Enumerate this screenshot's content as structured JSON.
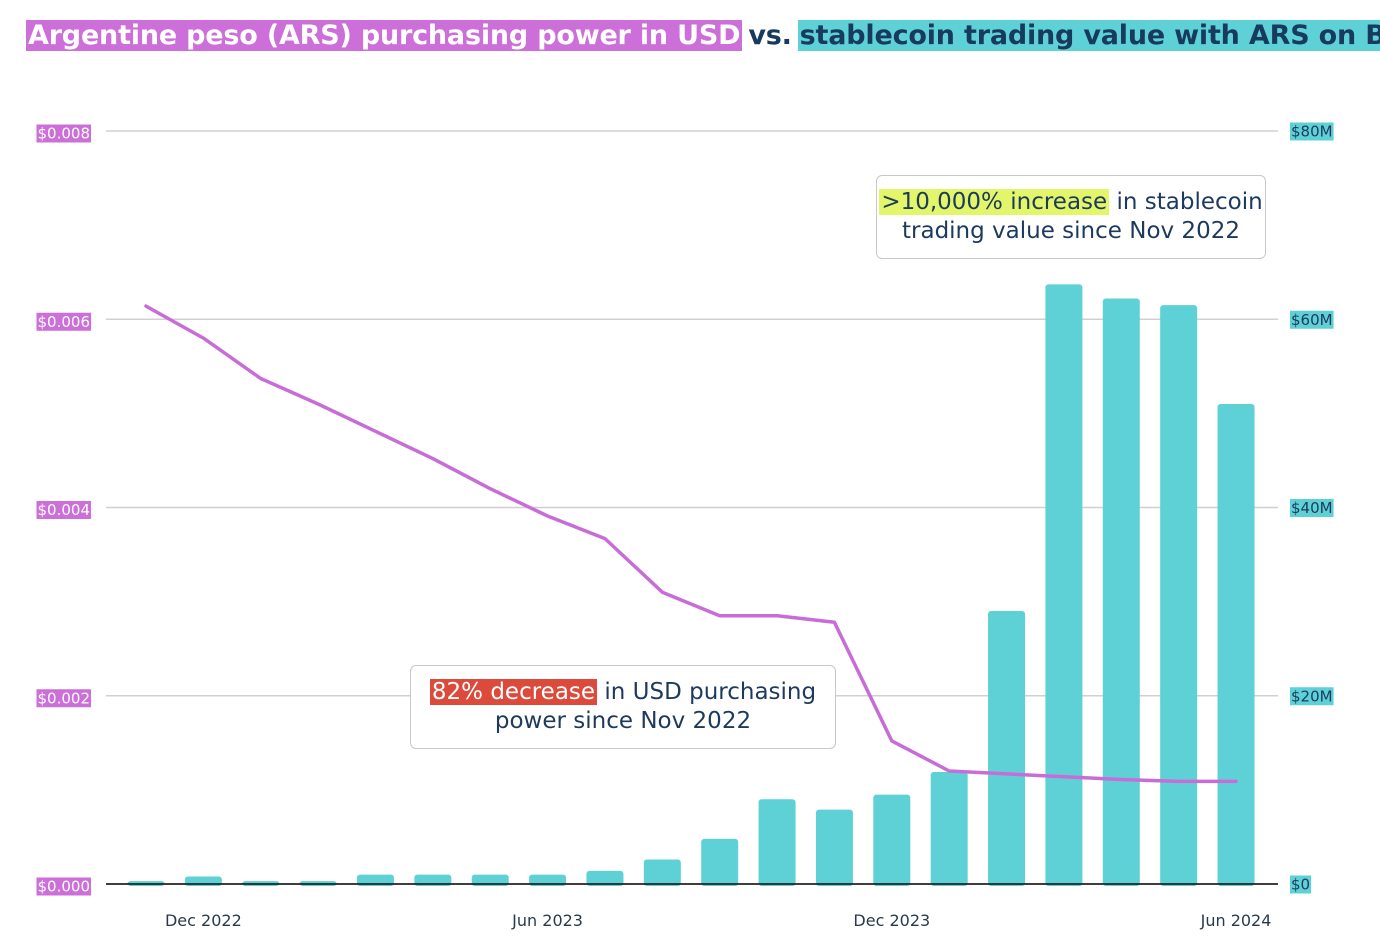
{
  "title": {
    "part1": "Argentine peso (ARS) purchasing power in USD",
    "vs": "vs.",
    "part2": "stablecoin trading value with ARS on Bitso"
  },
  "colors": {
    "line": "#c86dd7",
    "bars": "#5ed1d7",
    "left_axis_label_bg": "#cc6fd8",
    "right_axis_label_bg": "#5ed1d7",
    "grid": "#d0d0d0",
    "highlight_increase": "#e3f66a",
    "highlight_decrease": "#dc4a3c"
  },
  "annotations": {
    "increase": {
      "highlight": ">10,000% increase",
      "rest": " in stablecoin trading value since Nov 2022"
    },
    "decrease": {
      "highlight": "82% decrease",
      "rest": " in USD purchasing power since Nov 2022"
    }
  },
  "chart_data": {
    "type": "bar",
    "title": "Argentine peso (ARS) purchasing power in USD vs. stablecoin trading value with ARS on Bitso",
    "x_tick_labels": [
      "Dec 2022",
      "Jun 2023",
      "Dec 2023",
      "Jun 2024"
    ],
    "categories": [
      "Nov 2022",
      "Dec 2022",
      "Jan 2023",
      "Feb 2023",
      "Mar 2023",
      "Apr 2023",
      "May 2023",
      "Jun 2023",
      "Jul 2023",
      "Aug 2023",
      "Sep 2023",
      "Oct 2023",
      "Nov 2023",
      "Dec 2023",
      "Jan 2024",
      "Feb 2024",
      "Mar 2024",
      "Apr 2024",
      "May 2024",
      "Jun 2024"
    ],
    "left_axis": {
      "ticks": [
        "$0.000",
        "$0.002",
        "$0.004",
        "$0.006",
        "$0.008"
      ],
      "ylim": [
        0,
        0.008
      ]
    },
    "right_axis": {
      "ticks": [
        "$0",
        "$20M",
        "$40M",
        "$60M",
        "$80M"
      ],
      "ylim": [
        0,
        80
      ]
    },
    "series": [
      {
        "name": "stablecoin trading value with ARS on Bitso",
        "kind": "bar",
        "axis": "right",
        "unit": "$M",
        "values": [
          0.3,
          0.8,
          0.3,
          0.3,
          1.0,
          1.0,
          1.0,
          1.0,
          1.4,
          2.6,
          4.8,
          9.0,
          7.9,
          9.5,
          11.9,
          29.0,
          63.7,
          62.2,
          61.5,
          51.0
        ]
      },
      {
        "name": "Argentine peso (ARS) purchasing power in USD",
        "kind": "line",
        "axis": "left",
        "values": [
          0.00614,
          0.0058,
          0.00537,
          0.0051,
          0.00481,
          0.00452,
          0.0042,
          0.00391,
          0.00367,
          0.0031,
          0.00285,
          0.00285,
          0.00278,
          0.00152,
          0.0012,
          0.00117,
          0.00114,
          0.00111,
          0.00109,
          0.00109
        ]
      }
    ]
  }
}
